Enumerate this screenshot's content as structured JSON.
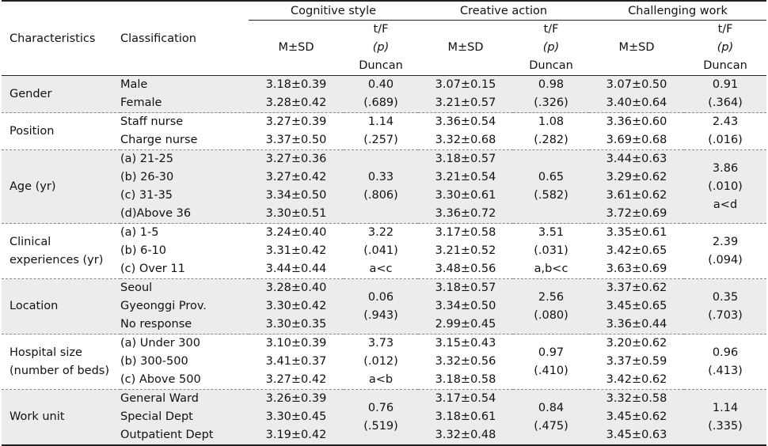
{
  "headers": {
    "characteristics": "Characteristics",
    "classification": "Classification",
    "groups": [
      "Cognitive style",
      "Creative action",
      "Challenging work"
    ],
    "msd": "M±SD",
    "tf": "t/F",
    "p": "(p)",
    "duncan": "Duncan"
  },
  "rows": [
    {
      "name": [
        "Gender"
      ],
      "classes": [
        "Male",
        "Female"
      ],
      "cog": [
        "3.18±0.39",
        "3.28±0.42"
      ],
      "cog_t": [
        "0.40",
        "(.689)"
      ],
      "cre": [
        "3.07±0.15",
        "3.21±0.57"
      ],
      "cre_t": [
        "0.98",
        "(.326)"
      ],
      "cha": [
        "3.07±0.50",
        "3.40±0.64"
      ],
      "cha_t": [
        "0.91",
        "(.364)"
      ]
    },
    {
      "name": [
        "Position"
      ],
      "classes": [
        "Staff nurse",
        "Charge nurse"
      ],
      "cog": [
        "3.27±0.39",
        "3.37±0.50"
      ],
      "cog_t": [
        "1.14",
        "(.257)"
      ],
      "cre": [
        "3.36±0.54",
        "3.32±0.68"
      ],
      "cre_t": [
        "1.08",
        "(.282)"
      ],
      "cha": [
        "3.36±0.60",
        "3.69±0.68"
      ],
      "cha_t": [
        "2.43",
        "(.016)"
      ]
    },
    {
      "name": [
        "Age (yr)"
      ],
      "classes": [
        "(a) 21-25",
        "(b) 26-30",
        "(c) 31-35",
        "(d)Above 36"
      ],
      "cog": [
        "3.27±0.36",
        "3.27±0.42",
        "3.34±0.50",
        "3.30±0.51"
      ],
      "cog_t": [
        "0.33",
        "(.806)"
      ],
      "cre": [
        "3.18±0.57",
        "3.21±0.54",
        "3.30±0.61",
        "3.36±0.72"
      ],
      "cre_t": [
        "0.65",
        "(.582)"
      ],
      "cha": [
        "3.44±0.63",
        "3.29±0.62",
        "3.61±0.62",
        "3.72±0.69"
      ],
      "cha_t": [
        "3.86",
        "(.010)",
        "a<d"
      ]
    },
    {
      "name": [
        "Clinical",
        "experiences (yr)"
      ],
      "classes": [
        "(a) 1-5",
        "(b) 6-10",
        "(c) Over 11"
      ],
      "cog": [
        "3.24±0.40",
        "3.31±0.42",
        "3.44±0.44"
      ],
      "cog_t": [
        "3.22",
        "(.041)",
        "a<c"
      ],
      "cre": [
        "3.17±0.58",
        "3.21±0.52",
        "3.48±0.56"
      ],
      "cre_t": [
        "3.51",
        "(.031)",
        "a,b<c"
      ],
      "cha": [
        "3.35±0.61",
        "3.42±0.65",
        "3.63±0.69"
      ],
      "cha_t": [
        "2.39",
        "(.094)"
      ]
    },
    {
      "name": [
        "Location"
      ],
      "classes": [
        "Seoul",
        "Gyeonggi Prov.",
        "No response"
      ],
      "cog": [
        "3.28±0.40",
        "3.30±0.42",
        "3.30±0.35"
      ],
      "cog_t": [
        "0.06",
        "(.943)"
      ],
      "cre": [
        "3.18±0.57",
        "3.34±0.50",
        "2.99±0.45"
      ],
      "cre_t": [
        "2.56",
        "(.080)"
      ],
      "cha": [
        "3.37±0.62",
        "3.45±0.65",
        "3.36±0.44"
      ],
      "cha_t": [
        "0.35",
        "(.703)"
      ]
    },
    {
      "name": [
        "Hospital size",
        "(number of beds)"
      ],
      "classes": [
        "(a) Under 300",
        "(b) 300-500",
        "(c) Above 500"
      ],
      "cog": [
        "3.10±0.39",
        "3.41±0.37",
        "3.27±0.42"
      ],
      "cog_t": [
        "3.73",
        "(.012)",
        "a<b"
      ],
      "cre": [
        "3.15±0.43",
        "3.32±0.56",
        "3.18±0.58"
      ],
      "cre_t": [
        "0.97",
        "(.410)"
      ],
      "cha": [
        "3.20±0.62",
        "3.37±0.59",
        "3.42±0.62"
      ],
      "cha_t": [
        "0.96",
        "(.413)"
      ]
    },
    {
      "name": [
        "Work unit"
      ],
      "classes": [
        "General Ward",
        "Special Dept",
        "Outpatient Dept"
      ],
      "cog": [
        "3.26±0.39",
        "3.30±0.45",
        "3.19±0.42"
      ],
      "cog_t": [
        "0.76",
        "(.519)"
      ],
      "cre": [
        "3.17±0.54",
        "3.18±0.61",
        "3.32±0.48"
      ],
      "cre_t": [
        "0.84",
        "(.475)"
      ],
      "cha": [
        "3.32±0.58",
        "3.45±0.62",
        "3.45±0.63"
      ],
      "cha_t": [
        "1.14",
        "(.335)"
      ]
    }
  ]
}
